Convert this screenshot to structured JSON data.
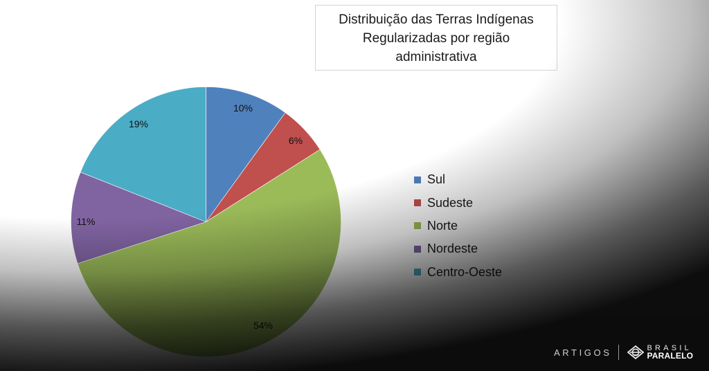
{
  "title": {
    "line1": "Distribuição das Terras Indígenas",
    "line2": "Regularizadas por região",
    "line3": "administrativa"
  },
  "legend": {
    "items": [
      {
        "label": "Sul",
        "color": "#4F81BD"
      },
      {
        "label": "Sudeste",
        "color": "#C0504D"
      },
      {
        "label": "Norte",
        "color": "#9BBB59"
      },
      {
        "label": "Nordeste",
        "color": "#8064A2"
      },
      {
        "label": "Centro-Oeste",
        "color": "#4BACC6"
      }
    ]
  },
  "slices": [
    {
      "label": "10%",
      "name": "Sul",
      "color": "#4F81BD"
    },
    {
      "label": "6%",
      "name": "Sudeste",
      "color": "#C0504D"
    },
    {
      "label": "54%",
      "name": "Norte",
      "color": "#9BBB59"
    },
    {
      "label": "11%",
      "name": "Nordeste",
      "color": "#8064A2"
    },
    {
      "label": "19%",
      "name": "Centro-Oeste",
      "color": "#4BACC6"
    }
  ],
  "branding": {
    "section": "ARTIGOS",
    "brand_top": "BRASIL",
    "brand_bottom": "PARALELO"
  },
  "chart_data": {
    "type": "pie",
    "title": "Distribuição das Terras Indígenas Regularizadas por região administrativa",
    "categories": [
      "Sul",
      "Sudeste",
      "Norte",
      "Nordeste",
      "Centro-Oeste"
    ],
    "values": [
      10,
      6,
      54,
      11,
      19
    ],
    "unit": "%",
    "data_labels": [
      "10%",
      "6%",
      "54%",
      "11%",
      "19%"
    ],
    "colors": [
      "#4F81BD",
      "#C0504D",
      "#9BBB59",
      "#8064A2",
      "#4BACC6"
    ],
    "start_angle": "12 o'clock",
    "direction": "clockwise",
    "legend_position": "right",
    "xlabel": "",
    "ylabel": ""
  }
}
